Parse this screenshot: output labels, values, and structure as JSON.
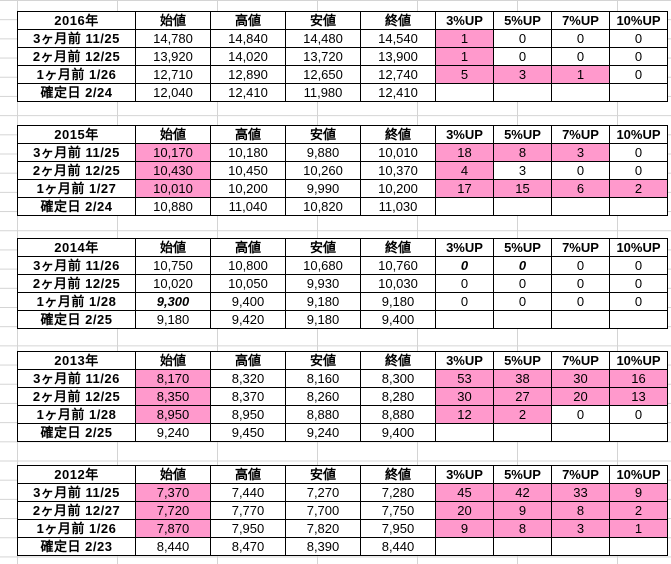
{
  "headers": [
    "始値",
    "高値",
    "安値",
    "終値",
    "3%UP",
    "5%UP",
    "7%UP",
    "10%UP"
  ],
  "blocks": [
    {
      "year": "2016年",
      "rows": [
        {
          "label": "3ヶ月前 11/25",
          "vals": [
            "14,780",
            "14,840",
            "14,480",
            "14,540"
          ],
          "up": [
            "1",
            "0",
            "0",
            "0"
          ]
        },
        {
          "label": "2ヶ月前 12/25",
          "vals": [
            "13,920",
            "14,020",
            "13,720",
            "13,900"
          ],
          "up": [
            "1",
            "0",
            "0",
            "0"
          ]
        },
        {
          "label": "1ヶ月前 1/26",
          "vals": [
            "12,710",
            "12,890",
            "12,650",
            "12,740"
          ],
          "up": [
            "5",
            "3",
            "1",
            "0"
          ]
        },
        {
          "label": "確定日 2/24",
          "vals": [
            "12,040",
            "12,410",
            "11,980",
            "12,410"
          ],
          "up": [
            "",
            "",
            "",
            ""
          ]
        }
      ]
    },
    {
      "year": "2015年",
      "rows": [
        {
          "label": "3ヶ月前 11/25",
          "vals": [
            "10,170",
            "10,180",
            "9,880",
            "10,010"
          ],
          "up": [
            "18",
            "8",
            "3",
            "0"
          ]
        },
        {
          "label": "2ヶ月前 12/25",
          "vals": [
            "10,430",
            "10,450",
            "10,260",
            "10,370"
          ],
          "up": [
            "4",
            "3",
            "0",
            "0"
          ]
        },
        {
          "label": "1ヶ月前 1/27",
          "vals": [
            "10,010",
            "10,200",
            "9,990",
            "10,200"
          ],
          "up": [
            "17",
            "15",
            "6",
            "2"
          ]
        },
        {
          "label": "確定日 2/24",
          "vals": [
            "10,880",
            "11,040",
            "10,820",
            "11,030"
          ],
          "up": [
            "",
            "",
            "",
            ""
          ]
        }
      ]
    },
    {
      "year": "2014年",
      "rows": [
        {
          "label": "3ヶ月前 11/26",
          "vals": [
            "10,750",
            "10,800",
            "10,680",
            "10,760"
          ],
          "up": [
            "0",
            "0",
            "0",
            "0"
          ]
        },
        {
          "label": "2ヶ月前 12/25",
          "vals": [
            "10,020",
            "10,050",
            "9,930",
            "10,030"
          ],
          "up": [
            "0",
            "0",
            "0",
            "0"
          ]
        },
        {
          "label": "1ヶ月前 1/28",
          "vals": [
            "9,300",
            "9,400",
            "9,180",
            "9,180"
          ],
          "up": [
            "0",
            "0",
            "0",
            "0"
          ]
        },
        {
          "label": "確定日 2/25",
          "vals": [
            "9,180",
            "9,420",
            "9,180",
            "9,400"
          ],
          "up": [
            "",
            "",
            "",
            ""
          ]
        }
      ]
    },
    {
      "year": "2013年",
      "rows": [
        {
          "label": "3ヶ月前 11/26",
          "vals": [
            "8,170",
            "8,320",
            "8,160",
            "8,300"
          ],
          "up": [
            "53",
            "38",
            "30",
            "16"
          ]
        },
        {
          "label": "2ヶ月前 12/25",
          "vals": [
            "8,350",
            "8,370",
            "8,260",
            "8,280"
          ],
          "up": [
            "30",
            "27",
            "20",
            "13"
          ]
        },
        {
          "label": "1ヶ月前 1/28",
          "vals": [
            "8,950",
            "8,950",
            "8,880",
            "8,880"
          ],
          "up": [
            "12",
            "2",
            "0",
            "0"
          ]
        },
        {
          "label": "確定日 2/25",
          "vals": [
            "9,240",
            "9,450",
            "9,240",
            "9,400"
          ],
          "up": [
            "",
            "",
            "",
            ""
          ]
        }
      ]
    },
    {
      "year": "2012年",
      "rows": [
        {
          "label": "3ヶ月前 11/25",
          "vals": [
            "7,370",
            "7,440",
            "7,270",
            "7,280"
          ],
          "up": [
            "45",
            "42",
            "33",
            "9"
          ]
        },
        {
          "label": "2ヶ月前 12/27",
          "vals": [
            "7,720",
            "7,770",
            "7,700",
            "7,750"
          ],
          "up": [
            "20",
            "9",
            "8",
            "2"
          ]
        },
        {
          "label": "1ヶ月前 1/26",
          "vals": [
            "7,870",
            "7,950",
            "7,820",
            "7,950"
          ],
          "up": [
            "9",
            "8",
            "3",
            "1"
          ]
        },
        {
          "label": "確定日 2/23",
          "vals": [
            "8,440",
            "8,470",
            "8,390",
            "8,440"
          ],
          "up": [
            "",
            "",
            "",
            ""
          ]
        }
      ]
    }
  ],
  "colors": {
    "highlight": "#ff99cc",
    "gridline": "#d4d4d4",
    "muted_text": "#b0b0b0"
  }
}
